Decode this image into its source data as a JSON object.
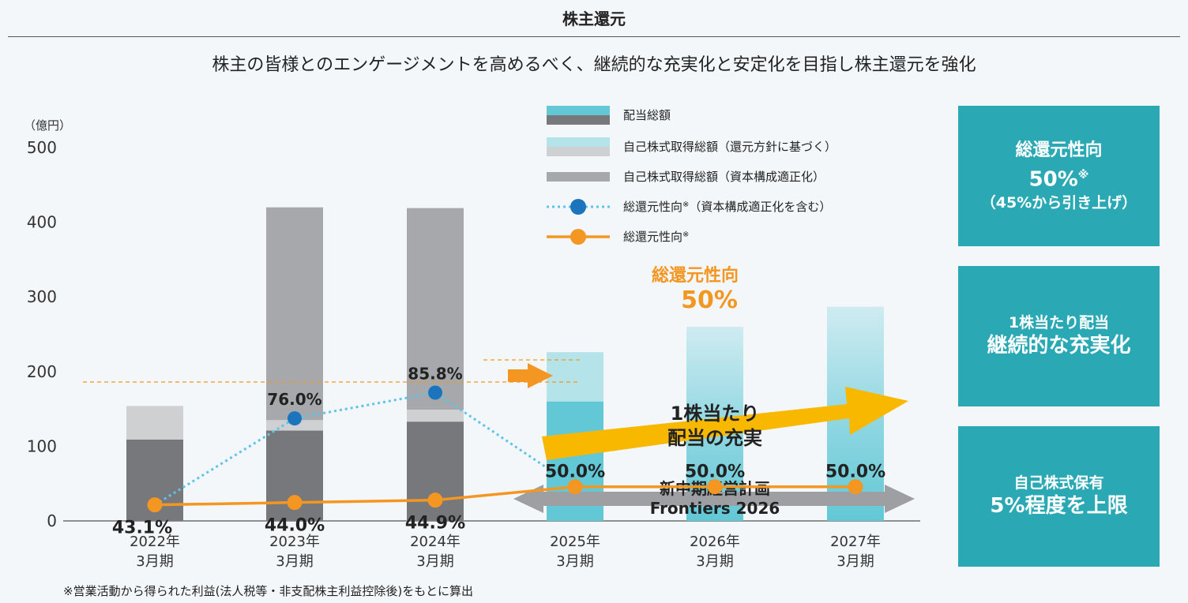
{
  "header": {
    "title": "株主還元",
    "subtitle": "株主の皆様とのエンゲージメントを高めるべく、継続的な充実化と安定化を目指し株主還元を強化"
  },
  "footnote": "※営業活動から得られた利益(法人税等・非支配株主利益控除後)をもとに算出",
  "side_boxes": {
    "box1": {
      "line1": "総還元性向",
      "line2": "50%",
      "line2_mark": "※",
      "line3": "（45%から引き上げ）"
    },
    "box2": {
      "line1": "1株当たり配当",
      "line2": "継続的な充実化"
    },
    "box3": {
      "line1": "自己株式保有",
      "line2": "5%程度を上限"
    }
  },
  "annotations": {
    "target_label_line1": "総還元性向",
    "target_label_line2": "50%",
    "arrow_text_line1": "1株当たり",
    "arrow_text_line2": "配当の充実",
    "plan_line1": "新中期経営計画",
    "plan_line2": "Frontiers 2026"
  },
  "colors": {
    "dividend_actual": "#77787b",
    "dividend_plan": "#62c8d6",
    "buyback_policy_actual": "#cfd0d2",
    "buyback_policy_plan": "#b4e3ea",
    "buyback_capital": "#a6a8ab",
    "total_incl_line": "#5ec4e8",
    "total_incl_marker": "#1c75bc",
    "total_line": "#f39622",
    "side_box": "#2aa9b5",
    "arrow": "#f9b800"
  },
  "chart_data": {
    "type": "bar",
    "unit_label": "（億円）",
    "ylim": [
      0,
      500
    ],
    "yticks": [
      0,
      100,
      200,
      300,
      400,
      500
    ],
    "categories": [
      {
        "year": "2022年",
        "period": "3月期"
      },
      {
        "year": "2023年",
        "period": "3月期"
      },
      {
        "year": "2024年",
        "period": "3月期"
      },
      {
        "year": "2025年",
        "period": "3月期"
      },
      {
        "year": "2026年",
        "period": "3月期"
      },
      {
        "year": "2027年",
        "period": "3月期"
      }
    ],
    "series": [
      {
        "name": "配当総額",
        "values": [
          109,
          121,
          133,
          160,
          null,
          null
        ]
      },
      {
        "name": "自己株式取得総額（還元方針に基づく）",
        "values": [
          45,
          14,
          16,
          66,
          null,
          null
        ]
      },
      {
        "name": "自己株式取得総額（資本構成適正化）",
        "values": [
          0,
          285,
          270,
          0,
          null,
          null
        ]
      }
    ],
    "plan_totals": [
      null,
      null,
      null,
      null,
      260,
      287
    ],
    "lines": [
      {
        "name": "総還元性向",
        "name_mark": "※",
        "sub": "（資本構成適正化を含む）",
        "values": [
          43.1,
          76.0,
          85.8,
          50.0,
          null,
          null
        ],
        "labels": [
          null,
          "76.0%",
          "85.8%",
          null,
          null,
          null
        ]
      },
      {
        "name": "総還元性向",
        "name_mark": "※",
        "values": [
          43.1,
          44.0,
          44.9,
          50.0,
          50.0,
          50.0
        ],
        "labels": [
          "43.1%",
          "44.0%",
          "44.9%",
          "50.0%",
          "50.0%",
          "50.0%"
        ]
      }
    ],
    "legend": [
      {
        "label": "配当総額"
      },
      {
        "label": "自己株式取得総額（還元方針に基づく）"
      },
      {
        "label": "自己株式取得総額（資本構成適正化）"
      },
      {
        "label": "総還元性向",
        "mark": "※",
        "sub": "（資本構成適正化を含む）"
      },
      {
        "label": "総還元性向",
        "mark": "※"
      }
    ]
  }
}
